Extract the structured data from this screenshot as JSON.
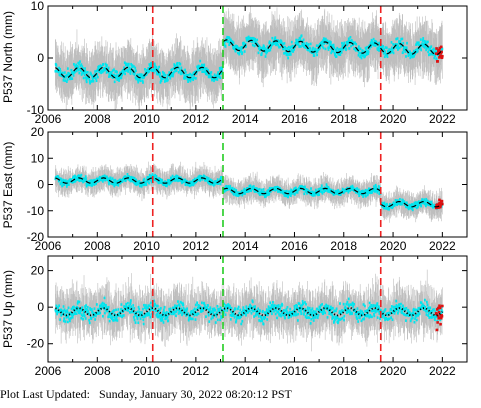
{
  "footer": {
    "label": "Plot Last Updated:",
    "timestamp": "Sunday, January 30, 2022 08:20:12 PST"
  },
  "colors": {
    "error_bars": "#bdbdbd",
    "data_points": "#00e5ee",
    "model_line": "#000000",
    "recent_points": "#dd1111",
    "red_vline": "#ee2222",
    "green_vline": "#22cc22"
  },
  "chart_data": [
    {
      "type": "scatter",
      "ylabel": "P537 North (mm)",
      "xlim": [
        2006.0,
        2023.0
      ],
      "ylim": [
        -10,
        10
      ],
      "x_ticks": [
        2006,
        2008,
        2010,
        2012,
        2014,
        2016,
        2018,
        2020,
        2022
      ],
      "x_tick_labels": [
        "2006",
        "2008",
        "2010",
        "2012",
        "2014",
        "2016",
        "2018",
        "2020",
        "2022"
      ],
      "y_ticks": [
        -10,
        0,
        10
      ],
      "y_tick_labels": [
        "-10",
        "0",
        "10"
      ],
      "model_style": "dashed",
      "data_start": 2006.3,
      "data_end": 2022.0,
      "model": {
        "segments": [
          {
            "x0": 2006.3,
            "x1": 2013.1,
            "mean": -2.8,
            "trend": 0.0
          },
          {
            "x0": 2013.1,
            "x1": 2022.0,
            "mean": 2.5,
            "trend": -0.1
          }
        ],
        "seasonal_amplitude": 1.0
      },
      "scatter_sd": 1.3,
      "error_half_range": 4.5,
      "red_vlines": [
        2010.25,
        2019.5
      ],
      "green_vlines": [
        2013.1
      ]
    },
    {
      "type": "scatter",
      "ylabel": "P537 East (mm)",
      "xlim": [
        2006.0,
        2023.0
      ],
      "ylim": [
        -20,
        20
      ],
      "x_ticks": [
        2006,
        2008,
        2010,
        2012,
        2014,
        2016,
        2018,
        2020,
        2022
      ],
      "x_tick_labels": [
        "2006",
        "2008",
        "2010",
        "2012",
        "2014",
        "2016",
        "2018",
        "2020",
        "2022"
      ],
      "y_ticks": [
        -20,
        -10,
        0,
        10,
        20
      ],
      "y_tick_labels": [
        "-20",
        "-10",
        "0",
        "10",
        "20"
      ],
      "model_style": "dashed",
      "data_start": 2006.3,
      "data_end": 2022.0,
      "model": {
        "segments": [
          {
            "x0": 2006.3,
            "x1": 2013.1,
            "mean": 1.5,
            "trend": 0.0
          },
          {
            "x0": 2013.1,
            "x1": 2019.5,
            "mean": -2.5,
            "trend": 0.0
          },
          {
            "x0": 2019.5,
            "x1": 2022.0,
            "mean": -7.5,
            "trend": 0.0
          }
        ],
        "seasonal_amplitude": 1.0
      },
      "scatter_sd": 1.5,
      "error_half_range": 4.0,
      "red_vlines": [
        2010.25,
        2019.5
      ],
      "green_vlines": [
        2013.1
      ]
    },
    {
      "type": "scatter",
      "ylabel": "P537 Up (mm)",
      "xlim": [
        2006.0,
        2023.0
      ],
      "ylim": [
        -30,
        28
      ],
      "x_ticks": [
        2006,
        2008,
        2010,
        2012,
        2014,
        2016,
        2018,
        2020,
        2022
      ],
      "x_tick_labels": [
        "2006",
        "2008",
        "2010",
        "2012",
        "2014",
        "2016",
        "2018",
        "2020",
        "2022"
      ],
      "y_ticks": [
        -20,
        0,
        20
      ],
      "y_tick_labels": [
        "-20",
        "0",
        "20"
      ],
      "model_style": "dotted",
      "data_start": 2006.3,
      "data_end": 2022.0,
      "model": {
        "segments": [
          {
            "x0": 2006.3,
            "x1": 2022.0,
            "mean": -2.5,
            "trend": 0.0
          }
        ],
        "seasonal_amplitude": 2.0
      },
      "scatter_sd": 5.0,
      "error_half_range": 10.0,
      "red_vlines": [
        2010.25,
        2019.5
      ],
      "green_vlines": [
        2013.1
      ]
    }
  ]
}
